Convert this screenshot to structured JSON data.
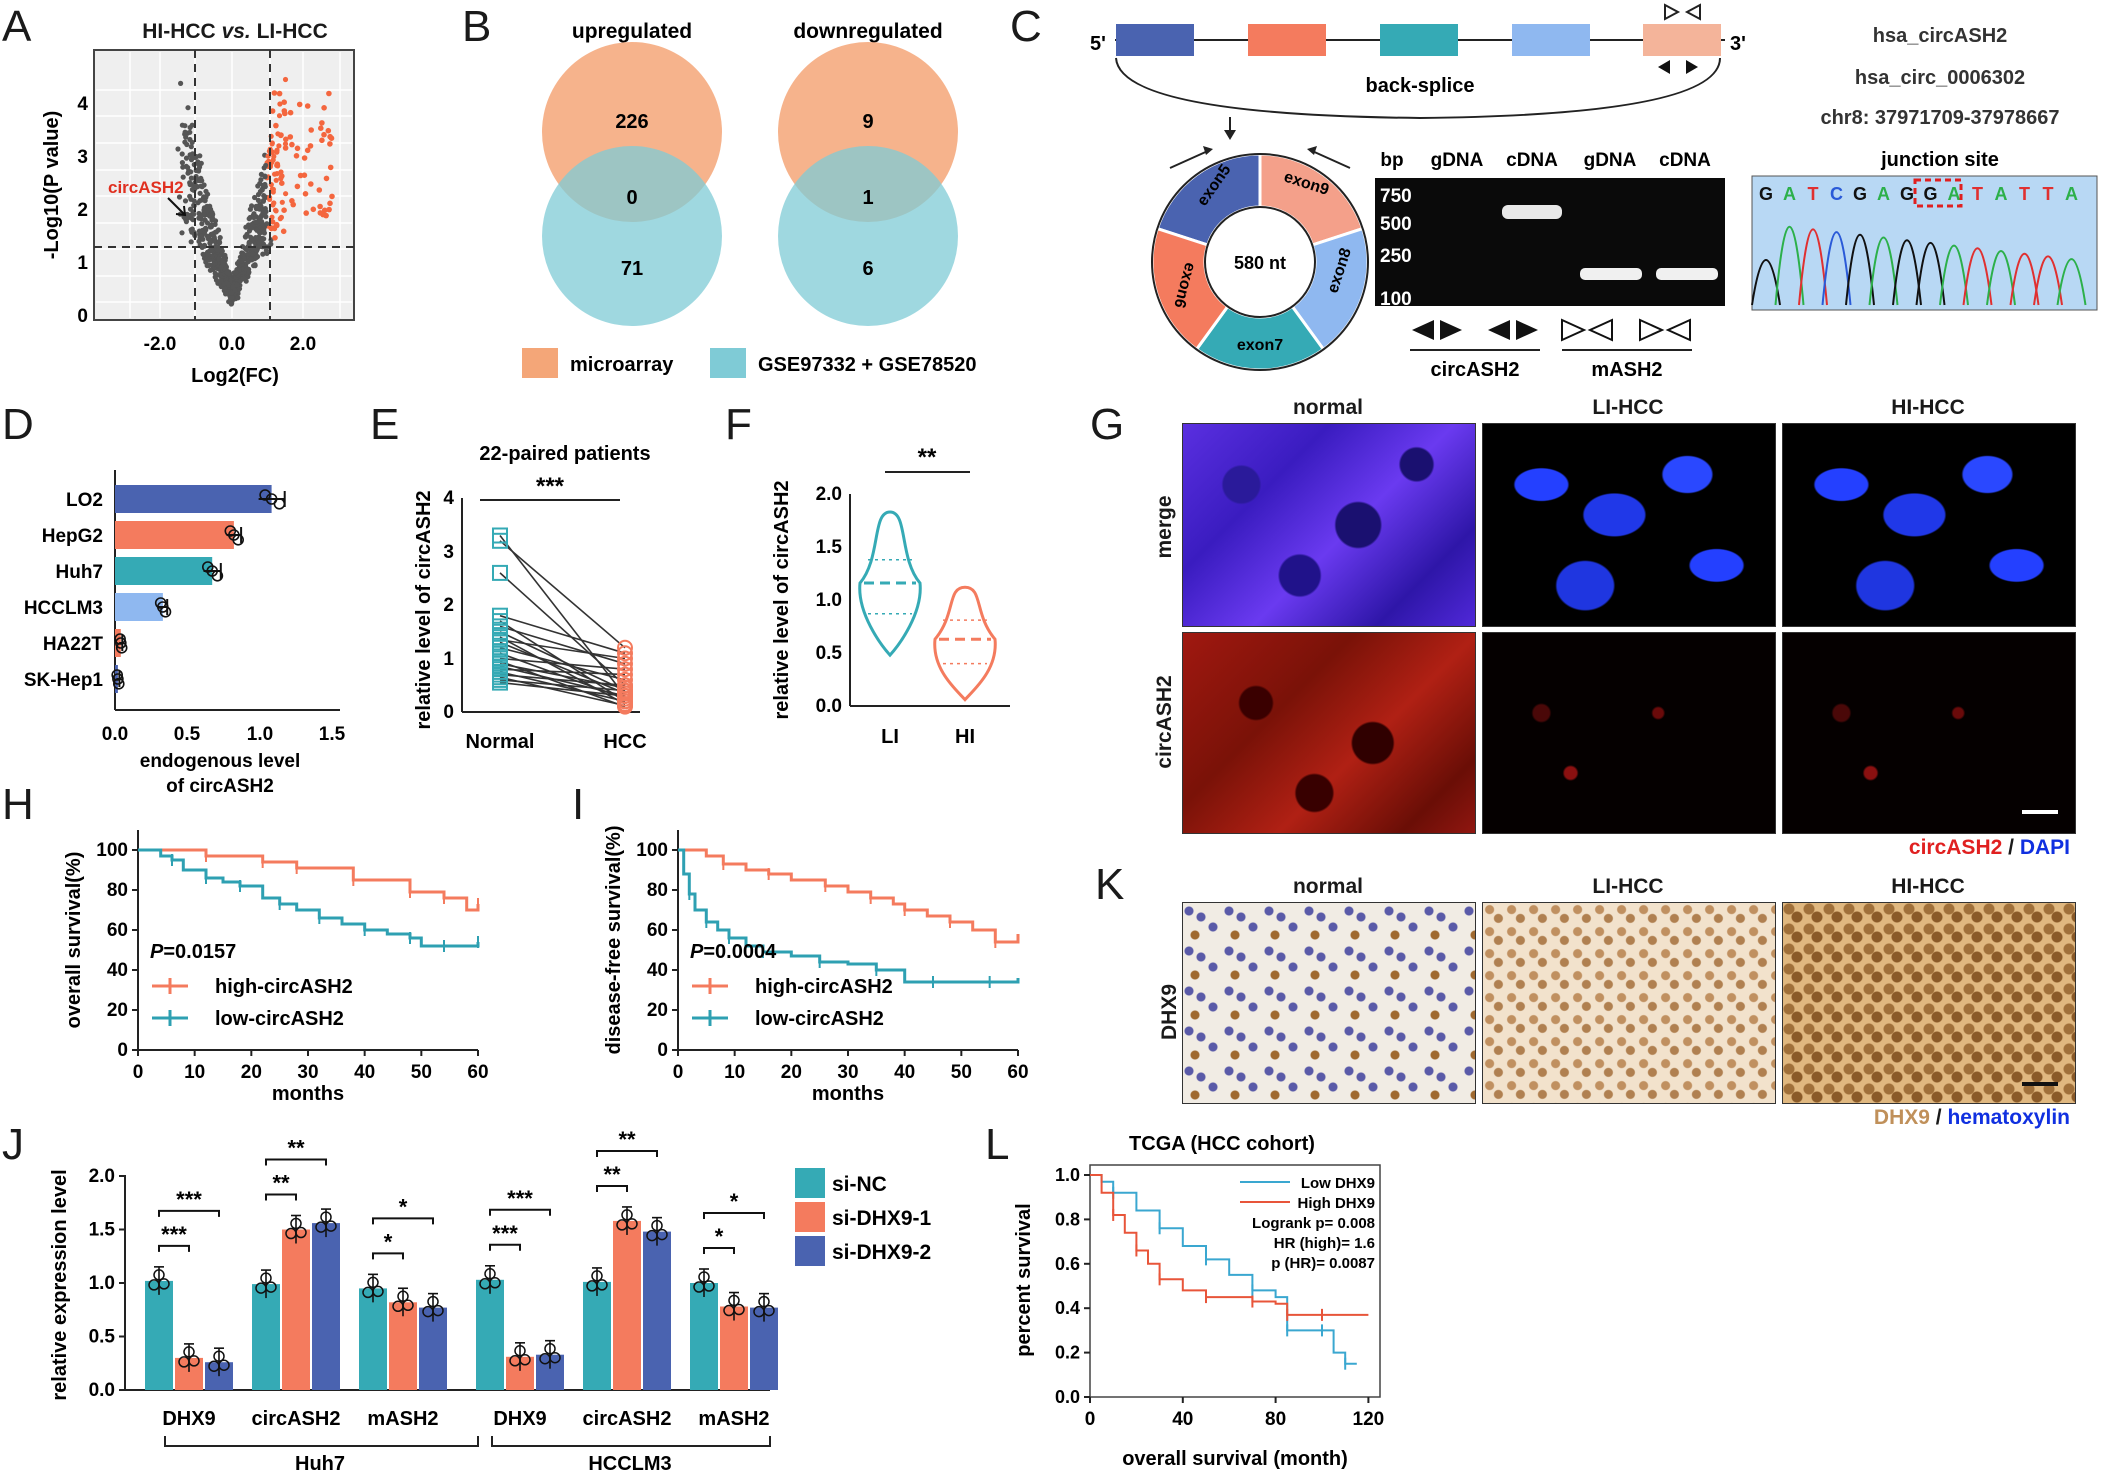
{
  "panels": {
    "A": {
      "letter": "A",
      "title_pre": "HI-HCC ",
      "title_vs": "vs.",
      "title_post": " LI-HCC",
      "ylabel": "-Log10(P value)",
      "xlabel": "Log2(FC)",
      "annotation": "circASH2",
      "xticks": [
        "-2.0",
        "0.0",
        "2.0"
      ],
      "yticks": [
        "0",
        "1",
        "2",
        "3",
        "4"
      ]
    },
    "B": {
      "letter": "B",
      "left_title": "upregulated",
      "right_title": "downregulated",
      "left_top": "226",
      "left_mid": "0",
      "left_bottom": "71",
      "right_top": "9",
      "right_mid": "1",
      "right_bottom": "6",
      "legend_1": "microarray",
      "legend_2": "GSE97332 + GSE78520",
      "color_1": "#F4A678",
      "color_2": "#7FCBD6"
    },
    "C": {
      "letter": "C",
      "five": "5'",
      "three": "3'",
      "backsplice": "back-splice",
      "ids": [
        "hsa_circASH2",
        "hsa_circ_0006302",
        "chr8: 37971709-37978667"
      ],
      "exons": [
        "exon5",
        "exon9",
        "exon8",
        "exon7",
        "exon6"
      ],
      "size": "580 nt",
      "gel_headers": [
        "bp",
        "gDNA",
        "cDNA",
        "gDNA",
        "cDNA"
      ],
      "gel_sizes": [
        "750",
        "500",
        "250",
        "100"
      ],
      "gel_groups": [
        "circASH2",
        "mASH2"
      ],
      "junction_title": "junction site",
      "sequence": [
        "G",
        "A",
        "T",
        "C",
        "G",
        "A",
        "G",
        "G",
        "A",
        "T",
        "A",
        "T",
        "T",
        "A"
      ]
    },
    "D": {
      "letter": "D",
      "xlabel_1": "endogenous level",
      "xlabel_2": "of circASH2",
      "xticks": [
        "0.0",
        "0.5",
        "1.0",
        "1.5"
      ]
    },
    "E": {
      "letter": "E",
      "title": "22-paired patients",
      "ylabel": "relative level of circASH2",
      "sig": "***",
      "categories": [
        "Normal",
        "HCC"
      ],
      "yticks": [
        "0",
        "1",
        "2",
        "3",
        "4"
      ]
    },
    "F": {
      "letter": "F",
      "ylabel": "relative level of circASH2",
      "sig": "**",
      "categories": [
        "LI",
        "HI"
      ],
      "yticks": [
        "0.0",
        "0.5",
        "1.0",
        "1.5",
        "2.0"
      ]
    },
    "G": {
      "letter": "G",
      "columns": [
        "normal",
        "LI-HCC",
        "HI-HCC"
      ],
      "rows": [
        "merge",
        "circASH2"
      ],
      "legend_a": "circASH2",
      "legend_sep": " / ",
      "legend_b": "DAPI"
    },
    "H": {
      "letter": "H",
      "ylabel": "overall survival(%)",
      "xlabel": "months",
      "pval_label": "P",
      "pval": "=0.0157",
      "legend": [
        "high-circASH2",
        "low-circASH2"
      ],
      "xticks": [
        "0",
        "10",
        "20",
        "30",
        "40",
        "50",
        "60"
      ],
      "yticks": [
        "0",
        "20",
        "40",
        "60",
        "80",
        "100"
      ]
    },
    "I": {
      "letter": "I",
      "ylabel": "disease-free survival(%)",
      "xlabel": "months",
      "pval_label": "P",
      "pval": "=0.0004",
      "legend": [
        "high-circASH2",
        "low-circASH2"
      ],
      "xticks": [
        "0",
        "10",
        "20",
        "30",
        "40",
        "50",
        "60"
      ],
      "yticks": [
        "0",
        "20",
        "40",
        "60",
        "80",
        "100"
      ]
    },
    "K": {
      "letter": "K",
      "columns": [
        "normal",
        "LI-HCC",
        "HI-HCC"
      ],
      "row": "DHX9",
      "legend_a": "DHX9",
      "legend_sep": " / ",
      "legend_b": "hematoxylin"
    },
    "J": {
      "letter": "J",
      "ylabel": "relative expression level",
      "groups": [
        "DHX9",
        "circASH2",
        "mASH2",
        "DHX9",
        "circASH2",
        "mASH2"
      ],
      "cells": [
        "Huh7",
        "HCCLM3"
      ],
      "legend": [
        "si-NC",
        "si-DHX9-1",
        "si-DHX9-2"
      ],
      "yticks": [
        "0.0",
        "0.5",
        "1.0",
        "1.5",
        "2.0"
      ]
    },
    "L": {
      "letter": "L",
      "title": "TCGA (HCC cohort)",
      "ylabel": "percent survival",
      "xlabel": "overall survival (month)",
      "legend": [
        "Low DHX9",
        "High DHX9"
      ],
      "stats": [
        "Logrank p= 0.008",
        "HR (high)= 1.6",
        "p (HR)= 0.0087"
      ],
      "xticks": [
        "0",
        "40",
        "80",
        "120"
      ],
      "yticks": [
        "0.0",
        "0.2",
        "0.4",
        "0.6",
        "0.8",
        "1.0"
      ]
    }
  },
  "chart_data": [
    {
      "panel": "D",
      "type": "bar",
      "orientation": "horizontal",
      "categories": [
        "LO2",
        "HepG2",
        "Huh7",
        "HCCLM3",
        "HA22T",
        "SK-Hep1"
      ],
      "values": [
        1.08,
        0.82,
        0.67,
        0.33,
        0.04,
        0.02
      ],
      "errors": [
        0.09,
        0.05,
        0.06,
        0.03,
        0.01,
        0.01
      ],
      "colors": [
        "#4A63B0",
        "#F47B5E",
        "#35AAB5",
        "#8FB8F0",
        "#F47B5E",
        "#4A63B0"
      ],
      "xlim": [
        0,
        1.5
      ]
    },
    {
      "panel": "E",
      "type": "scatter",
      "ylim": [
        0,
        4
      ],
      "categories": [
        "Normal",
        "HCC"
      ],
      "normal": [
        3.3,
        3.2,
        2.6,
        1.8,
        1.7,
        1.6,
        1.5,
        1.4,
        1.35,
        1.3,
        1.2,
        1.1,
        1.0,
        0.95,
        0.9,
        0.85,
        0.8,
        0.75,
        0.7,
        0.65,
        0.6,
        0.55
      ],
      "hcc": [
        0.3,
        1.2,
        0.5,
        1.1,
        0.2,
        0.9,
        0.4,
        0.15,
        1.0,
        0.35,
        0.6,
        0.25,
        0.8,
        0.1,
        0.45,
        0.3,
        0.7,
        0.2,
        0.5,
        0.12,
        0.4,
        0.3
      ]
    },
    {
      "panel": "F",
      "type": "violin",
      "ylim": [
        0,
        2.0
      ],
      "categories": [
        "LI",
        "HI"
      ],
      "range": [
        [
          0.48,
          1.83
        ],
        [
          0.06,
          1.12
        ]
      ],
      "median": [
        1.16,
        0.63
      ],
      "quartiles": [
        [
          0.87,
          1.38
        ],
        [
          0.4,
          0.81
        ]
      ]
    },
    {
      "panel": "H",
      "type": "line",
      "xlim": [
        0,
        60
      ],
      "ylim": [
        0,
        100
      ],
      "series": [
        {
          "name": "high-circASH2",
          "x": [
            0,
            11,
            12,
            18,
            22,
            26,
            28,
            34,
            38,
            44,
            48,
            52,
            54,
            58,
            60
          ],
          "y": [
            100,
            100,
            97,
            97,
            94,
            94,
            91,
            91,
            85,
            85,
            79,
            79,
            76,
            70,
            73
          ]
        },
        {
          "name": "low-circASH2",
          "x": [
            0,
            4,
            6,
            8,
            12,
            15,
            18,
            22,
            25,
            28,
            32,
            36,
            40,
            44,
            48,
            50,
            54,
            58,
            60
          ],
          "y": [
            100,
            97,
            95,
            90,
            86,
            84,
            82,
            76,
            73,
            70,
            66,
            63,
            60,
            58,
            56,
            52,
            52,
            52,
            54
          ]
        }
      ]
    },
    {
      "panel": "I",
      "type": "line",
      "xlim": [
        0,
        60
      ],
      "ylim": [
        0,
        100
      ],
      "series": [
        {
          "name": "high-circASH2",
          "x": [
            0,
            5,
            8,
            12,
            16,
            20,
            26,
            30,
            34,
            38,
            40,
            44,
            48,
            52,
            56,
            60
          ],
          "y": [
            100,
            97,
            93,
            90,
            88,
            85,
            82,
            79,
            76,
            73,
            70,
            67,
            64,
            60,
            54,
            58
          ]
        },
        {
          "name": "low-circASH2",
          "x": [
            0,
            1,
            2,
            3,
            5,
            7,
            9,
            12,
            15,
            20,
            25,
            30,
            35,
            40,
            45,
            50,
            55,
            60
          ],
          "y": [
            100,
            88,
            78,
            70,
            64,
            60,
            56,
            52,
            49,
            47,
            44,
            43,
            40,
            34,
            34,
            34,
            34,
            36
          ]
        }
      ]
    },
    {
      "panel": "J",
      "type": "bar",
      "ylim": [
        0,
        2.0
      ],
      "categories": [
        "DHX9",
        "circASH2",
        "mASH2",
        "DHX9",
        "circASH2",
        "mASH2"
      ],
      "series": [
        {
          "name": "si-NC",
          "values": [
            1.02,
            0.99,
            0.95,
            1.03,
            1.01,
            1.0
          ]
        },
        {
          "name": "si-DHX9-1",
          "values": [
            0.3,
            1.5,
            0.82,
            0.31,
            1.58,
            0.78
          ]
        },
        {
          "name": "si-DHX9-2",
          "values": [
            0.26,
            1.56,
            0.77,
            0.33,
            1.48,
            0.77
          ]
        }
      ],
      "significance": [
        [
          "***",
          "***"
        ],
        [
          "**",
          "**"
        ],
        [
          "*",
          "*"
        ],
        [
          "***",
          "***"
        ],
        [
          "**",
          "**"
        ],
        [
          "*",
          "*"
        ]
      ]
    },
    {
      "panel": "L",
      "type": "line",
      "xlim": [
        0,
        125
      ],
      "ylim": [
        0,
        1.0
      ],
      "series": [
        {
          "name": "Low DHX9",
          "x": [
            0,
            5,
            10,
            20,
            30,
            40,
            50,
            60,
            70,
            80,
            85,
            90,
            100,
            105,
            110,
            115
          ],
          "y": [
            1.0,
            0.97,
            0.92,
            0.84,
            0.76,
            0.68,
            0.62,
            0.55,
            0.48,
            0.45,
            0.3,
            0.3,
            0.3,
            0.2,
            0.15,
            0.15
          ]
        },
        {
          "name": "High DHX9",
          "x": [
            0,
            5,
            10,
            15,
            20,
            25,
            30,
            40,
            50,
            60,
            70,
            80,
            85,
            90,
            100,
            120
          ],
          "y": [
            1.0,
            0.92,
            0.82,
            0.74,
            0.66,
            0.6,
            0.53,
            0.48,
            0.45,
            0.45,
            0.43,
            0.42,
            0.37,
            0.37,
            0.37,
            0.37
          ]
        }
      ]
    }
  ]
}
